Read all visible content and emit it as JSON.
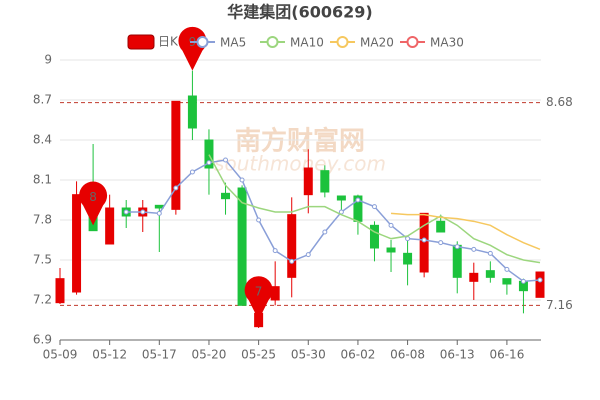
{
  "watermark": [
    "南方财富网",
    "southmoney.com"
  ],
  "chart_data": {
    "type": "candlestick",
    "title": "华建集团(600629)",
    "candle_name": "日K",
    "up_color": "#e60000",
    "down_color": "#1cc23c",
    "categories": [
      "05-09",
      null,
      null,
      "05-12",
      null,
      null,
      "05-17",
      null,
      null,
      "05-20",
      null,
      null,
      "05-25",
      null,
      null,
      "05-30",
      null,
      null,
      "06-02",
      null,
      null,
      "06-08",
      null,
      null,
      "06-13",
      null,
      null,
      "06-16",
      null,
      null
    ],
    "open": [
      7.18,
      7.26,
      7.9,
      7.62,
      7.89,
      7.83,
      7.91,
      7.88,
      8.73,
      8.4,
      8.0,
      8.04,
      7.0,
      7.2,
      7.37,
      7.99,
      8.17,
      7.98,
      7.98,
      7.76,
      7.59,
      7.55,
      7.41,
      7.79,
      7.61,
      7.34,
      7.42,
      7.36,
      7.34,
      7.22
    ],
    "close": [
      7.36,
      7.99,
      7.72,
      7.89,
      7.83,
      7.89,
      7.89,
      8.69,
      8.49,
      8.19,
      7.96,
      7.16,
      7.1,
      7.3,
      7.84,
      8.19,
      8.01,
      7.95,
      7.79,
      7.59,
      7.56,
      7.47,
      7.85,
      7.71,
      7.37,
      7.4,
      7.37,
      7.32,
      7.27,
      7.41
    ],
    "high": [
      7.44,
      8.09,
      8.37,
      7.99,
      7.95,
      7.95,
      7.91,
      8.69,
      8.92,
      8.48,
      8.08,
      8.06,
      7.14,
      7.49,
      7.97,
      8.33,
      8.21,
      7.98,
      7.99,
      7.79,
      7.65,
      7.65,
      7.85,
      7.84,
      7.64,
      7.48,
      7.49,
      7.36,
      7.36,
      7.41
    ],
    "low": [
      7.17,
      7.24,
      7.72,
      7.62,
      7.74,
      7.71,
      7.56,
      7.84,
      8.4,
      7.99,
      7.84,
      7.16,
      6.99,
      7.16,
      7.22,
      7.85,
      7.97,
      7.85,
      7.69,
      7.49,
      7.41,
      7.31,
      7.37,
      7.71,
      7.25,
      7.2,
      7.33,
      7.24,
      7.1,
      7.22
    ],
    "series": [
      {
        "name": "MA5",
        "color": "#8a9fd8",
        "markers": true,
        "values": [
          null,
          null,
          null,
          null,
          7.86,
          7.86,
          7.85,
          8.04,
          8.16,
          8.23,
          8.25,
          8.1,
          7.8,
          7.57,
          7.49,
          7.54,
          7.71,
          7.86,
          7.95,
          7.9,
          7.76,
          7.66,
          7.65,
          7.63,
          7.6,
          7.58,
          7.55,
          7.43,
          7.34,
          7.35
        ]
      },
      {
        "name": "MA10",
        "color": "#9cd67e",
        "markers": false,
        "values": [
          null,
          null,
          null,
          null,
          null,
          null,
          null,
          null,
          null,
          8.29,
          8.06,
          7.93,
          7.89,
          7.86,
          7.86,
          7.9,
          7.9,
          7.84,
          7.79,
          7.71,
          7.66,
          7.68,
          7.76,
          7.83,
          7.76,
          7.66,
          7.61,
          7.54,
          7.5,
          7.48
        ]
      },
      {
        "name": "MA20",
        "color": "#f6c85f",
        "markers": false,
        "values": [
          null,
          null,
          null,
          null,
          null,
          null,
          null,
          null,
          null,
          null,
          null,
          null,
          null,
          null,
          null,
          null,
          null,
          null,
          null,
          null,
          7.85,
          7.84,
          7.84,
          7.82,
          7.81,
          7.79,
          7.76,
          7.69,
          7.63,
          7.58
        ]
      },
      {
        "name": "MA30",
        "color": "#ef6567",
        "markers": false,
        "values": [
          null,
          null,
          null,
          null,
          null,
          null,
          null,
          null,
          null,
          null,
          null,
          null,
          null,
          null,
          null,
          null,
          null,
          null,
          null,
          null,
          null,
          null,
          null,
          null,
          null,
          null,
          null,
          null,
          null,
          null
        ]
      }
    ],
    "ylim": [
      6.9,
      9
    ],
    "yticks": [
      6.9,
      7.2,
      7.5,
      7.8,
      8.1,
      8.4,
      8.7,
      9
    ],
    "grid": true,
    "reference_lines": [
      {
        "value": 8.68,
        "label": "8.68",
        "color": "#c0392b"
      },
      {
        "value": 7.16,
        "label": "7.16",
        "color": "#c0392b"
      }
    ],
    "annotations": [
      {
        "text": "9",
        "value": 8.92,
        "index": 8
      },
      {
        "text": "8",
        "value": 7.76,
        "index": 2
      },
      {
        "text": "7",
        "value": 7.05,
        "index": 12
      }
    ]
  }
}
